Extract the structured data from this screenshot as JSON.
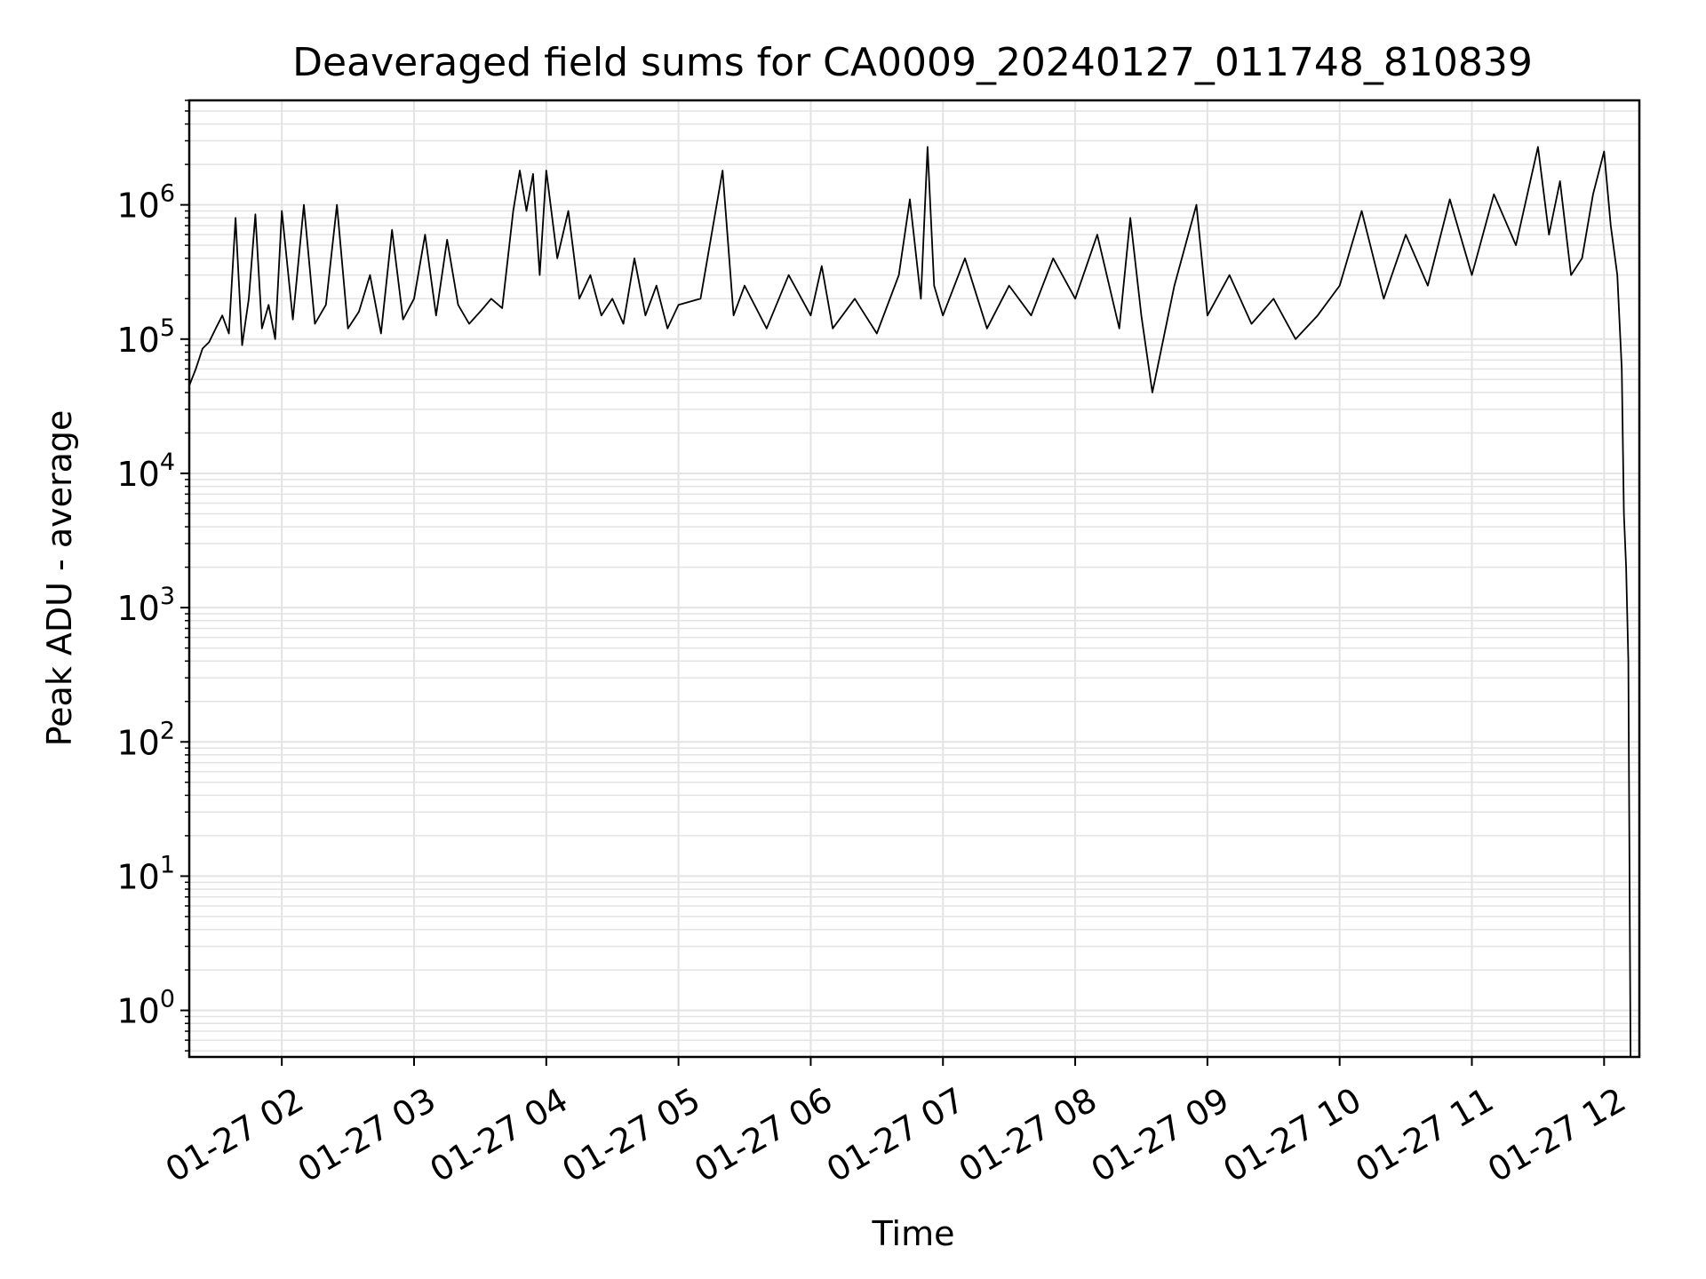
{
  "chart_data": {
    "type": "line",
    "title": "Deaveraged field sums for CA0009_20240127_011748_810839",
    "xlabel": "Time",
    "ylabel": "Peak ADU - average",
    "yscale": "log",
    "ylim": [
      0.45,
      6000000
    ],
    "xlim": [
      "2024-01-27 01:18",
      "2024-01-27 12:16"
    ],
    "grid": true,
    "legend": "none",
    "line_color": "#000000",
    "grid_color": "#e3e3e3",
    "x_ticks": [
      {
        "t": "2024-01-27 02:00",
        "label": "01-27 02"
      },
      {
        "t": "2024-01-27 03:00",
        "label": "01-27 03"
      },
      {
        "t": "2024-01-27 04:00",
        "label": "01-27 04"
      },
      {
        "t": "2024-01-27 05:00",
        "label": "01-27 05"
      },
      {
        "t": "2024-01-27 06:00",
        "label": "01-27 06"
      },
      {
        "t": "2024-01-27 07:00",
        "label": "01-27 07"
      },
      {
        "t": "2024-01-27 08:00",
        "label": "01-27 08"
      },
      {
        "t": "2024-01-27 09:00",
        "label": "01-27 09"
      },
      {
        "t": "2024-01-27 10:00",
        "label": "01-27 10"
      },
      {
        "t": "2024-01-27 11:00",
        "label": "01-27 11"
      },
      {
        "t": "2024-01-27 12:00",
        "label": "01-27 12"
      }
    ],
    "y_ticks": [
      {
        "value": 1,
        "base": "10",
        "exp": "0"
      },
      {
        "value": 10,
        "base": "10",
        "exp": "1"
      },
      {
        "value": 100,
        "base": "10",
        "exp": "2"
      },
      {
        "value": 1000,
        "base": "10",
        "exp": "3"
      },
      {
        "value": 10000,
        "base": "10",
        "exp": "4"
      },
      {
        "value": 100000,
        "base": "10",
        "exp": "5"
      },
      {
        "value": 1000000,
        "base": "10",
        "exp": "6"
      }
    ],
    "series": [
      {
        "points": [
          [
            "2024-01-27 01:18",
            45000
          ],
          [
            "2024-01-27 01:21",
            60000
          ],
          [
            "2024-01-27 01:24",
            85000
          ],
          [
            "2024-01-27 01:27",
            95000
          ],
          [
            "2024-01-27 01:30",
            120000
          ],
          [
            "2024-01-27 01:33",
            150000
          ],
          [
            "2024-01-27 01:36",
            110000
          ],
          [
            "2024-01-27 01:39",
            800000
          ],
          [
            "2024-01-27 01:42",
            90000
          ],
          [
            "2024-01-27 01:45",
            200000
          ],
          [
            "2024-01-27 01:48",
            850000
          ],
          [
            "2024-01-27 01:51",
            120000
          ],
          [
            "2024-01-27 01:54",
            180000
          ],
          [
            "2024-01-27 01:57",
            100000
          ],
          [
            "2024-01-27 02:00",
            900000
          ],
          [
            "2024-01-27 02:05",
            140000
          ],
          [
            "2024-01-27 02:10",
            1000000
          ],
          [
            "2024-01-27 02:15",
            130000
          ],
          [
            "2024-01-27 02:20",
            180000
          ],
          [
            "2024-01-27 02:25",
            1000000
          ],
          [
            "2024-01-27 02:30",
            120000
          ],
          [
            "2024-01-27 02:35",
            160000
          ],
          [
            "2024-01-27 02:40",
            300000
          ],
          [
            "2024-01-27 02:45",
            110000
          ],
          [
            "2024-01-27 02:50",
            650000
          ],
          [
            "2024-01-27 02:55",
            140000
          ],
          [
            "2024-01-27 03:00",
            200000
          ],
          [
            "2024-01-27 03:05",
            600000
          ],
          [
            "2024-01-27 03:10",
            150000
          ],
          [
            "2024-01-27 03:15",
            550000
          ],
          [
            "2024-01-27 03:20",
            180000
          ],
          [
            "2024-01-27 03:25",
            130000
          ],
          [
            "2024-01-27 03:30",
            160000
          ],
          [
            "2024-01-27 03:35",
            200000
          ],
          [
            "2024-01-27 03:40",
            170000
          ],
          [
            "2024-01-27 03:45",
            900000
          ],
          [
            "2024-01-27 03:48",
            1800000
          ],
          [
            "2024-01-27 03:51",
            900000
          ],
          [
            "2024-01-27 03:54",
            1700000
          ],
          [
            "2024-01-27 03:57",
            300000
          ],
          [
            "2024-01-27 04:00",
            1800000
          ],
          [
            "2024-01-27 04:05",
            400000
          ],
          [
            "2024-01-27 04:10",
            900000
          ],
          [
            "2024-01-27 04:15",
            200000
          ],
          [
            "2024-01-27 04:20",
            300000
          ],
          [
            "2024-01-27 04:25",
            150000
          ],
          [
            "2024-01-27 04:30",
            200000
          ],
          [
            "2024-01-27 04:35",
            130000
          ],
          [
            "2024-01-27 04:40",
            400000
          ],
          [
            "2024-01-27 04:45",
            150000
          ],
          [
            "2024-01-27 04:50",
            250000
          ],
          [
            "2024-01-27 04:55",
            120000
          ],
          [
            "2024-01-27 05:00",
            180000
          ],
          [
            "2024-01-27 05:10",
            200000
          ],
          [
            "2024-01-27 05:20",
            1800000
          ],
          [
            "2024-01-27 05:25",
            150000
          ],
          [
            "2024-01-27 05:30",
            250000
          ],
          [
            "2024-01-27 05:40",
            120000
          ],
          [
            "2024-01-27 05:50",
            300000
          ],
          [
            "2024-01-27 06:00",
            150000
          ],
          [
            "2024-01-27 06:05",
            350000
          ],
          [
            "2024-01-27 06:10",
            120000
          ],
          [
            "2024-01-27 06:20",
            200000
          ],
          [
            "2024-01-27 06:30",
            110000
          ],
          [
            "2024-01-27 06:40",
            300000
          ],
          [
            "2024-01-27 06:45",
            1100000
          ],
          [
            "2024-01-27 06:50",
            200000
          ],
          [
            "2024-01-27 06:53",
            2700000
          ],
          [
            "2024-01-27 06:56",
            250000
          ],
          [
            "2024-01-27 07:00",
            150000
          ],
          [
            "2024-01-27 07:10",
            400000
          ],
          [
            "2024-01-27 07:20",
            120000
          ],
          [
            "2024-01-27 07:30",
            250000
          ],
          [
            "2024-01-27 07:40",
            150000
          ],
          [
            "2024-01-27 07:50",
            400000
          ],
          [
            "2024-01-27 08:00",
            200000
          ],
          [
            "2024-01-27 08:10",
            600000
          ],
          [
            "2024-01-27 08:20",
            120000
          ],
          [
            "2024-01-27 08:25",
            800000
          ],
          [
            "2024-01-27 08:30",
            150000
          ],
          [
            "2024-01-27 08:35",
            40000
          ],
          [
            "2024-01-27 08:45",
            250000
          ],
          [
            "2024-01-27 08:55",
            1000000
          ],
          [
            "2024-01-27 09:00",
            150000
          ],
          [
            "2024-01-27 09:10",
            300000
          ],
          [
            "2024-01-27 09:20",
            130000
          ],
          [
            "2024-01-27 09:30",
            200000
          ],
          [
            "2024-01-27 09:40",
            100000
          ],
          [
            "2024-01-27 09:50",
            150000
          ],
          [
            "2024-01-27 10:00",
            250000
          ],
          [
            "2024-01-27 10:10",
            900000
          ],
          [
            "2024-01-27 10:20",
            200000
          ],
          [
            "2024-01-27 10:30",
            600000
          ],
          [
            "2024-01-27 10:40",
            250000
          ],
          [
            "2024-01-27 10:50",
            1100000
          ],
          [
            "2024-01-27 11:00",
            300000
          ],
          [
            "2024-01-27 11:10",
            1200000
          ],
          [
            "2024-01-27 11:20",
            500000
          ],
          [
            "2024-01-27 11:30",
            2700000
          ],
          [
            "2024-01-27 11:35",
            600000
          ],
          [
            "2024-01-27 11:40",
            1500000
          ],
          [
            "2024-01-27 11:45",
            300000
          ],
          [
            "2024-01-27 11:50",
            400000
          ],
          [
            "2024-01-27 11:55",
            1200000
          ],
          [
            "2024-01-27 12:00",
            2500000
          ],
          [
            "2024-01-27 12:03",
            700000
          ],
          [
            "2024-01-27 12:06",
            300000
          ],
          [
            "2024-01-27 12:08",
            60000
          ],
          [
            "2024-01-27 12:09",
            5000
          ],
          [
            "2024-01-27 12:10",
            2000
          ],
          [
            "2024-01-27 12:11",
            400
          ],
          [
            "2024-01-27 12:12",
            0.45
          ]
        ]
      }
    ]
  }
}
